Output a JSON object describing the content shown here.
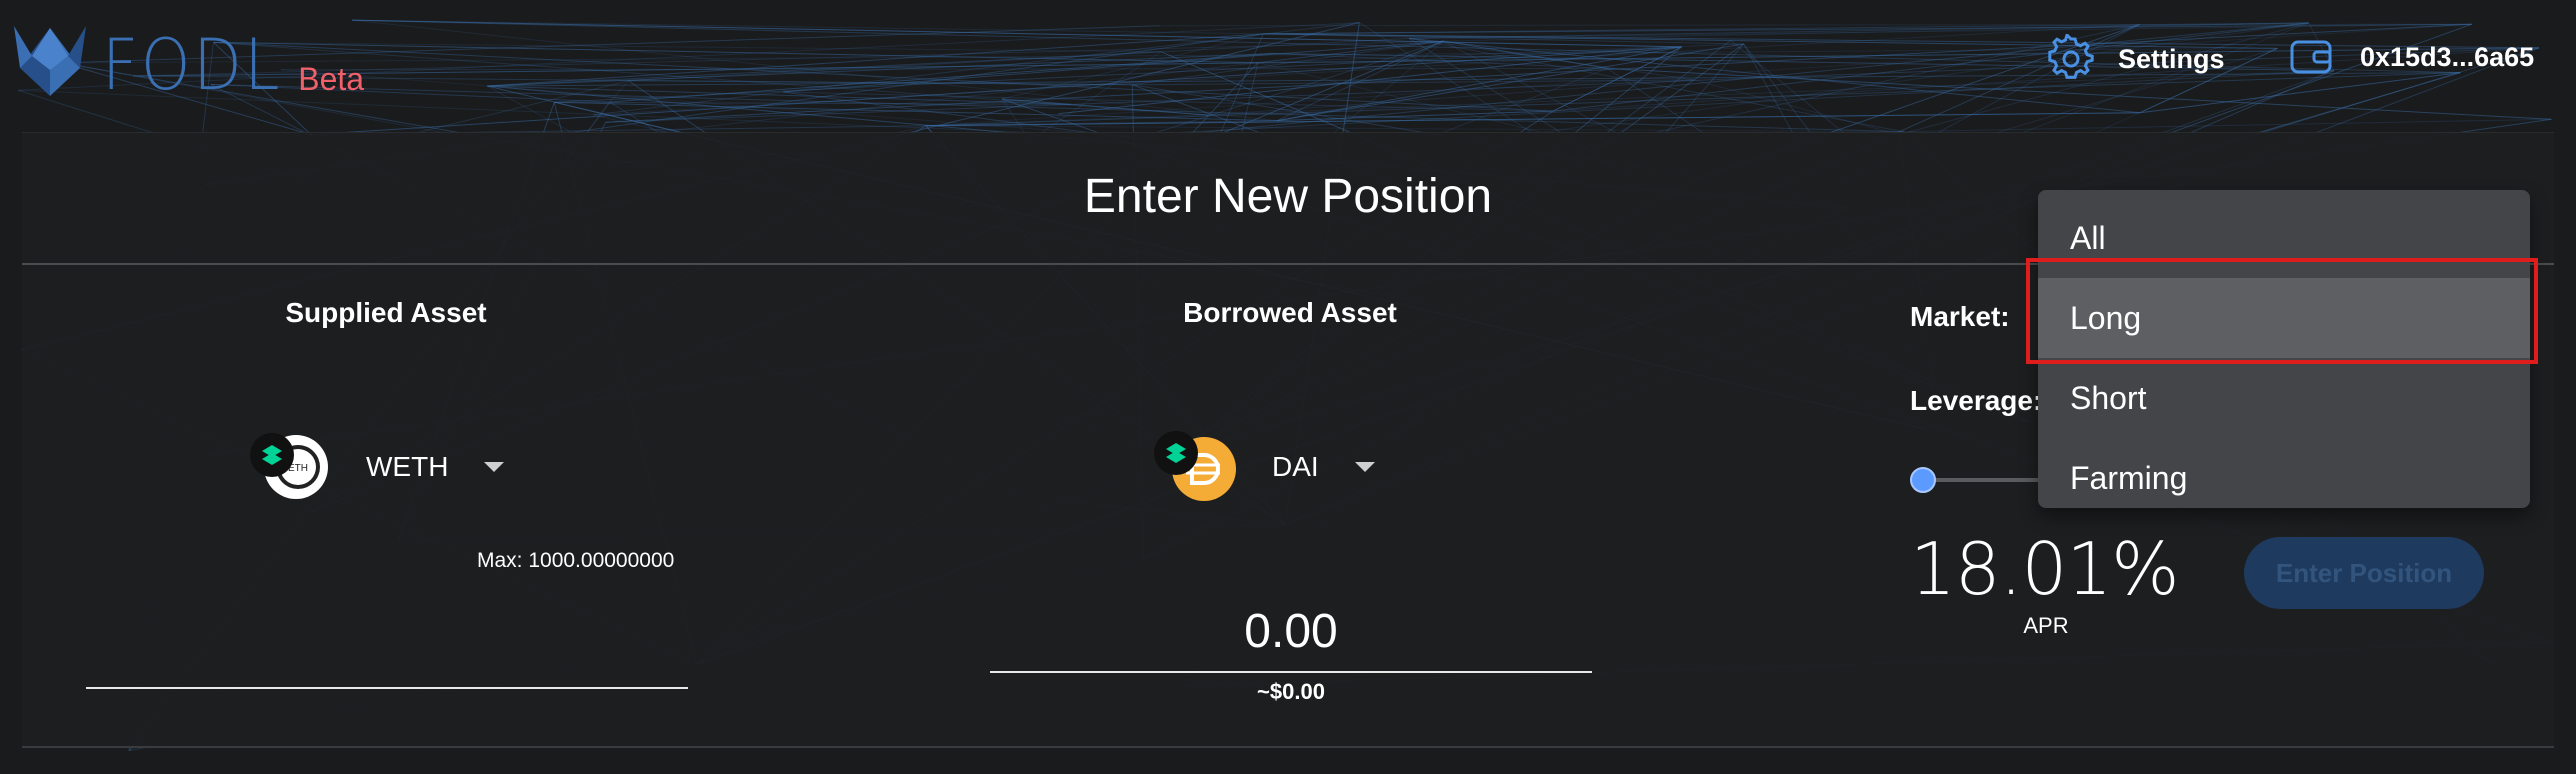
{
  "header": {
    "logo_text": "FODL",
    "logo_badge": "Beta",
    "settings_label": "Settings",
    "wallet_label": "0x15d3...6a65",
    "settings_icon": "gear-icon",
    "wallet_icon": "wallet-icon"
  },
  "panel": {
    "title": "Enter New Position",
    "supplied": {
      "heading": "Supplied Asset",
      "asset": "WETH",
      "max": "Max: 1000.00000000",
      "amount": ""
    },
    "borrowed": {
      "heading": "Borrowed Asset",
      "asset": "DAI",
      "amount": "0.00",
      "usd": "~$0.00"
    },
    "market_label": "Market:",
    "leverage_label": "Leverage:",
    "apr_value": "18.01%",
    "apr_label": "APR",
    "enter_button": "Enter Position"
  },
  "market_dropdown": {
    "options": [
      "All",
      "Long",
      "Short",
      "Farming"
    ],
    "highlighted": "Long"
  },
  "colors": {
    "accent": "#5b9bff",
    "logo": "#3b6fb3",
    "beta": "#f0606a",
    "highlight": "#e01d1d"
  }
}
